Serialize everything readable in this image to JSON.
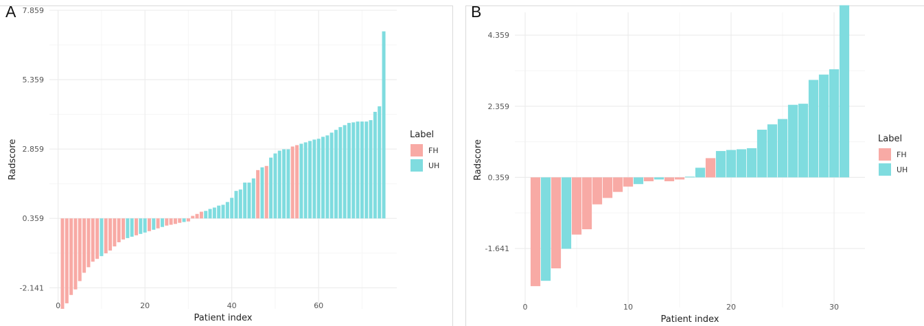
{
  "colors": {
    "FH": "#F8AAA5",
    "UH": "#7FDCDF",
    "grid_major": "#EBEBEB",
    "grid_minor": "#F5F5F5"
  },
  "chart_data": [
    {
      "panel": "A",
      "type": "bar",
      "title": "",
      "xlabel": "Patient index",
      "ylabel": "Radscore",
      "baseline": 0.359,
      "xlim": [
        -2,
        78
      ],
      "ylim": [
        -2.9,
        7.859
      ],
      "y_ticks": [
        -2.141,
        0.359,
        2.859,
        5.359,
        7.859
      ],
      "y_tick_labels": [
        "-2.141",
        "0.359",
        "2.859",
        "5.359",
        "7.859"
      ],
      "x_ticks": [
        0,
        20,
        40,
        60
      ],
      "x_tick_labels": [
        "0",
        "20",
        "40",
        "60"
      ],
      "grid": true,
      "legend": {
        "title": "Label",
        "position": "right",
        "entries": [
          "FH",
          "UH"
        ]
      },
      "x": [
        1,
        2,
        3,
        4,
        5,
        6,
        7,
        8,
        9,
        10,
        11,
        12,
        13,
        14,
        15,
        16,
        17,
        18,
        19,
        20,
        21,
        22,
        23,
        24,
        25,
        26,
        27,
        28,
        29,
        30,
        31,
        32,
        33,
        34,
        35,
        36,
        37,
        38,
        39,
        40,
        41,
        42,
        43,
        44,
        45,
        46,
        47,
        48,
        49,
        50,
        51,
        52,
        53,
        54,
        55,
        56,
        57,
        58,
        59,
        60,
        61,
        62,
        63,
        64,
        65,
        66,
        67,
        68,
        69,
        70,
        71,
        72,
        73,
        74,
        75
      ],
      "values": [
        -2.9,
        -2.7,
        -2.4,
        -2.2,
        -1.9,
        -1.6,
        -1.4,
        -1.2,
        -1.1,
        -1.0,
        -0.9,
        -0.8,
        -0.65,
        -0.5,
        -0.4,
        -0.35,
        -0.3,
        -0.25,
        -0.2,
        -0.15,
        -0.1,
        -0.05,
        0.0,
        0.05,
        0.1,
        0.13,
        0.16,
        0.2,
        0.23,
        0.25,
        0.45,
        0.52,
        0.6,
        0.63,
        0.7,
        0.75,
        0.82,
        0.85,
        0.95,
        1.1,
        1.35,
        1.4,
        1.65,
        1.65,
        1.8,
        2.1,
        2.2,
        2.25,
        2.55,
        2.7,
        2.8,
        2.85,
        2.85,
        2.95,
        3.0,
        3.05,
        3.1,
        3.15,
        3.2,
        3.23,
        3.3,
        3.35,
        3.45,
        3.55,
        3.65,
        3.72,
        3.8,
        3.82,
        3.85,
        3.85,
        3.85,
        3.9,
        4.2,
        4.4,
        7.1
      ],
      "labels": [
        "FH",
        "FH",
        "FH",
        "FH",
        "FH",
        "FH",
        "FH",
        "FH",
        "FH",
        "UH",
        "FH",
        "FH",
        "FH",
        "FH",
        "FH",
        "UH",
        "UH",
        "FH",
        "UH",
        "UH",
        "FH",
        "UH",
        "FH",
        "UH",
        "FH",
        "FH",
        "FH",
        "FH",
        "UH",
        "FH",
        "FH",
        "FH",
        "FH",
        "UH",
        "UH",
        "UH",
        "UH",
        "UH",
        "UH",
        "UH",
        "UH",
        "UH",
        "UH",
        "UH",
        "UH",
        "FH",
        "UH",
        "FH",
        "UH",
        "UH",
        "UH",
        "UH",
        "UH",
        "FH",
        "FH",
        "UH",
        "UH",
        "UH",
        "UH",
        "UH",
        "UH",
        "UH",
        "UH",
        "UH",
        "UH",
        "UH",
        "UH",
        "UH",
        "UH",
        "UH",
        "UH",
        "UH",
        "UH",
        "UH",
        "UH"
      ]
    },
    {
      "panel": "B",
      "type": "bar",
      "title": "",
      "xlabel": "Patient index",
      "ylabel": "Radscore",
      "baseline": 0.359,
      "xlim": [
        -1,
        33
      ],
      "ylim": [
        -3.3,
        5.0
      ],
      "y_ticks": [
        -1.641,
        0.359,
        2.359,
        4.359
      ],
      "y_tick_labels": [
        "-1.641",
        "0.359",
        "2.359",
        "4.359"
      ],
      "x_ticks": [
        0,
        10,
        20,
        30
      ],
      "x_tick_labels": [
        "0",
        "10",
        "20",
        "30"
      ],
      "grid": true,
      "legend": {
        "title": "Label",
        "position": "right",
        "entries": [
          "FH",
          "UH"
        ]
      },
      "x": [
        1,
        2,
        3,
        4,
        5,
        6,
        7,
        8,
        9,
        10,
        11,
        12,
        13,
        14,
        15,
        16,
        17,
        18,
        19,
        20,
        21,
        22,
        23,
        24,
        25,
        26,
        27,
        28,
        29,
        30,
        31
      ],
      "values": [
        -2.7,
        -2.55,
        -2.2,
        -1.65,
        -1.25,
        -1.1,
        -0.4,
        -0.22,
        -0.05,
        0.1,
        0.17,
        0.25,
        0.3,
        0.25,
        0.3,
        0.38,
        0.63,
        0.9,
        1.1,
        1.13,
        1.15,
        1.18,
        1.7,
        1.85,
        2.0,
        2.4,
        2.43,
        3.1,
        3.25,
        3.4,
        5.2
      ],
      "labels": [
        "FH",
        "UH",
        "FH",
        "UH",
        "FH",
        "FH",
        "FH",
        "FH",
        "FH",
        "FH",
        "UH",
        "FH",
        "UH",
        "FH",
        "FH",
        "UH",
        "UH",
        "FH",
        "UH",
        "UH",
        "UH",
        "UH",
        "UH",
        "UH",
        "UH",
        "UH",
        "UH",
        "UH",
        "UH",
        "UH",
        "UH"
      ]
    }
  ],
  "panel_letters": [
    "A",
    "B"
  ]
}
